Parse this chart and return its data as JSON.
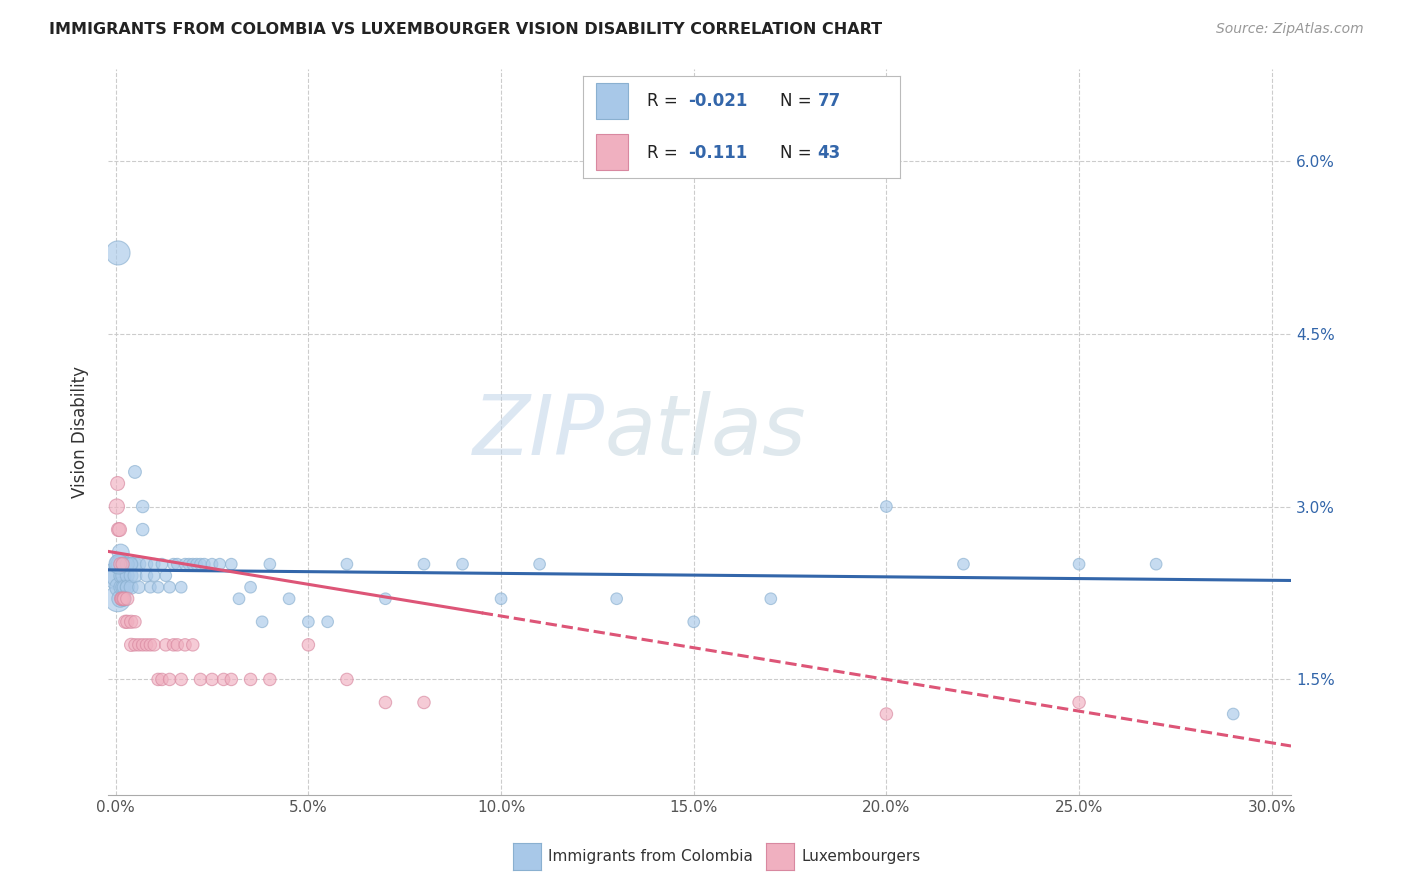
{
  "title": "IMMIGRANTS FROM COLOMBIA VS LUXEMBOURGER VISION DISABILITY CORRELATION CHART",
  "source": "Source: ZipAtlas.com",
  "xlabel_ticks": [
    "0.0%",
    "5.0%",
    "10.0%",
    "15.0%",
    "20.0%",
    "25.0%",
    "30.0%"
  ],
  "ylabel_ticks": [
    "1.5%",
    "3.0%",
    "4.5%",
    "6.0%"
  ],
  "ylabel_label": "Vision Disability",
  "xlim": [
    -0.002,
    0.305
  ],
  "ylim": [
    0.005,
    0.068
  ],
  "legend_labels": [
    "Immigrants from Colombia",
    "Luxembourgers"
  ],
  "legend_R": [
    "-0.021",
    "-0.111"
  ],
  "legend_N": [
    "77",
    "43"
  ],
  "colombia_color": "#a8c8e8",
  "luxembourg_color": "#f0b0c0",
  "colombia_line_color": "#3366aa",
  "luxembourg_line_color": "#dd5577",
  "background_color": "#ffffff",
  "watermark_zip": "ZIP",
  "watermark_atlas": "atlas",
  "colombia_x": [
    0.0003,
    0.0005,
    0.0007,
    0.001,
    0.001,
    0.0012,
    0.0013,
    0.0015,
    0.0015,
    0.0017,
    0.002,
    0.002,
    0.002,
    0.0022,
    0.0025,
    0.003,
    0.003,
    0.003,
    0.003,
    0.004,
    0.004,
    0.004,
    0.005,
    0.005,
    0.006,
    0.006,
    0.007,
    0.007,
    0.008,
    0.008,
    0.009,
    0.01,
    0.01,
    0.011,
    0.012,
    0.013,
    0.014,
    0.015,
    0.016,
    0.017,
    0.018,
    0.019,
    0.02,
    0.021,
    0.022,
    0.023,
    0.025,
    0.027,
    0.03,
    0.032,
    0.035,
    0.038,
    0.04,
    0.045,
    0.05,
    0.055,
    0.06,
    0.07,
    0.08,
    0.09,
    0.1,
    0.11,
    0.13,
    0.15,
    0.17,
    0.2,
    0.22,
    0.25,
    0.27,
    0.29,
    0.001,
    0.0008,
    0.0006,
    0.002,
    0.003,
    0.004,
    0.005
  ],
  "colombia_y": [
    0.024,
    0.022,
    0.024,
    0.023,
    0.025,
    0.022,
    0.026,
    0.023,
    0.024,
    0.022,
    0.023,
    0.025,
    0.024,
    0.023,
    0.025,
    0.023,
    0.024,
    0.025,
    0.023,
    0.025,
    0.024,
    0.023,
    0.025,
    0.024,
    0.025,
    0.023,
    0.028,
    0.03,
    0.025,
    0.024,
    0.023,
    0.025,
    0.024,
    0.023,
    0.025,
    0.024,
    0.023,
    0.025,
    0.025,
    0.023,
    0.025,
    0.025,
    0.025,
    0.025,
    0.025,
    0.025,
    0.025,
    0.025,
    0.025,
    0.022,
    0.023,
    0.02,
    0.025,
    0.022,
    0.02,
    0.02,
    0.025,
    0.022,
    0.025,
    0.025,
    0.022,
    0.025,
    0.022,
    0.02,
    0.022,
    0.03,
    0.025,
    0.025,
    0.025,
    0.012,
    0.025,
    0.025,
    0.052,
    0.022,
    0.025,
    0.025,
    0.033
  ],
  "colombia_sizes": [
    400,
    350,
    300,
    200,
    200,
    150,
    150,
    120,
    120,
    100,
    120,
    120,
    120,
    100,
    100,
    100,
    100,
    100,
    100,
    100,
    100,
    100,
    100,
    100,
    100,
    80,
    80,
    80,
    80,
    80,
    70,
    70,
    70,
    70,
    70,
    70,
    70,
    70,
    70,
    70,
    70,
    70,
    70,
    70,
    70,
    70,
    70,
    70,
    70,
    70,
    70,
    70,
    70,
    70,
    70,
    70,
    70,
    70,
    70,
    70,
    70,
    70,
    70,
    70,
    70,
    70,
    70,
    70,
    70,
    70,
    150,
    200,
    300,
    120,
    100,
    90,
    85
  ],
  "luxembourg_x": [
    0.0003,
    0.0005,
    0.0007,
    0.001,
    0.0012,
    0.0014,
    0.0016,
    0.0018,
    0.002,
    0.0022,
    0.0025,
    0.003,
    0.003,
    0.004,
    0.004,
    0.005,
    0.005,
    0.006,
    0.007,
    0.008,
    0.009,
    0.01,
    0.011,
    0.012,
    0.013,
    0.014,
    0.015,
    0.016,
    0.017,
    0.018,
    0.02,
    0.022,
    0.025,
    0.028,
    0.03,
    0.035,
    0.04,
    0.05,
    0.06,
    0.07,
    0.08,
    0.2,
    0.25
  ],
  "luxembourg_y": [
    0.03,
    0.032,
    0.028,
    0.028,
    0.025,
    0.022,
    0.022,
    0.025,
    0.022,
    0.022,
    0.02,
    0.022,
    0.02,
    0.02,
    0.018,
    0.018,
    0.02,
    0.018,
    0.018,
    0.018,
    0.018,
    0.018,
    0.015,
    0.015,
    0.018,
    0.015,
    0.018,
    0.018,
    0.015,
    0.018,
    0.018,
    0.015,
    0.015,
    0.015,
    0.015,
    0.015,
    0.015,
    0.018,
    0.015,
    0.013,
    0.013,
    0.012,
    0.013
  ],
  "luxembourg_sizes": [
    120,
    100,
    100,
    100,
    90,
    90,
    90,
    90,
    90,
    90,
    90,
    90,
    90,
    90,
    90,
    80,
    80,
    80,
    80,
    80,
    80,
    80,
    80,
    80,
    80,
    80,
    80,
    80,
    80,
    80,
    80,
    80,
    80,
    80,
    80,
    80,
    80,
    80,
    80,
    80,
    80,
    80,
    80
  ]
}
